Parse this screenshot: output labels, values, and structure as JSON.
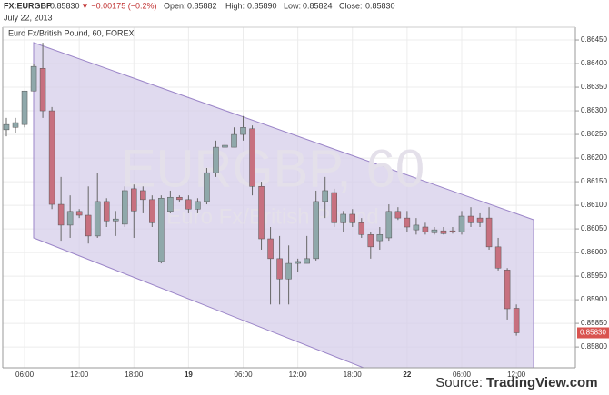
{
  "chart_data": {
    "type": "candlestick",
    "quote": {
      "symbol": "FX:EURGBP",
      "last": "0.85830",
      "change": "▼ −0.00175 (−0.2%)",
      "open_label": "Open:",
      "open": "0.85882",
      "high_label": "High:",
      "high": "0.85890",
      "low_label": "Low:",
      "low": "0.85824",
      "close_label": "Close:",
      "close": "0.85830",
      "date": "July 22, 2013"
    },
    "title": "Euro Fx/British Pound, 60, FOREX",
    "watermark": "EURGBP, 60",
    "watermark_subtitle": "Euro Fx/British Pound",
    "source_label": "Source:",
    "source": "TradingView.com",
    "up_color": "#8fa8aa",
    "down_color": "#c7707f",
    "channel_color": "#d6cdea",
    "grid": true,
    "categories": [
      null,
      null,
      "06:00",
      null,
      null,
      null,
      null,
      null,
      "12:00",
      null,
      null,
      null,
      null,
      null,
      "18:00",
      null,
      null,
      null,
      null,
      null,
      "19",
      null,
      null,
      null,
      null,
      null,
      "06:00",
      null,
      null,
      null,
      null,
      null,
      "12:00",
      null,
      null,
      null,
      null,
      null,
      "18:00",
      null,
      null,
      null,
      null,
      null,
      "22",
      null,
      null,
      null,
      null,
      null,
      "06:00",
      null,
      null,
      null,
      null,
      null,
      "12:00"
    ],
    "open": [
      0.8626,
      0.86265,
      0.86271,
      0.86342,
      0.8639,
      0.863,
      0.86102,
      0.86058,
      0.86087,
      0.86079,
      0.86035,
      0.86108,
      0.86067,
      0.8606,
      0.86135,
      0.86131,
      0.86112,
      0.85981,
      0.86087,
      0.86117,
      0.86112,
      0.86092,
      0.86108,
      0.86169,
      0.86223,
      0.86223,
      0.8625,
      0.86262,
      0.8614,
      0.86029,
      0.85987,
      0.85944,
      0.85977,
      0.85977,
      0.85987,
      0.86108,
      0.86127,
      0.86063,
      0.86081,
      0.86063,
      0.86038,
      0.86025,
      0.86031,
      0.86087,
      0.86073,
      0.86048,
      0.86054,
      0.86042,
      0.86046,
      0.86046,
      0.86044,
      0.86077,
      0.86073,
      0.86073,
      0.86012,
      0.85963,
      0.85882
    ],
    "high": [
      0.86285,
      0.86285,
      0.86342,
      0.864,
      0.86444,
      0.86308,
      0.8616,
      0.86121,
      0.86092,
      0.8614,
      0.86169,
      0.86115,
      0.86088,
      0.8614,
      0.86144,
      0.8614,
      0.86121,
      0.86121,
      0.86131,
      0.86121,
      0.86121,
      0.86115,
      0.86179,
      0.86237,
      0.86237,
      0.86265,
      0.86289,
      0.86269,
      0.8615,
      0.86054,
      0.86035,
      0.86015,
      0.85987,
      0.86035,
      0.86131,
      0.8616,
      0.86135,
      0.86088,
      0.86092,
      0.86073,
      0.86044,
      0.86054,
      0.86102,
      0.86096,
      0.86088,
      0.86073,
      0.86063,
      0.86054,
      0.86054,
      0.86054,
      0.86088,
      0.86096,
      0.86083,
      0.86096,
      0.86031,
      0.85967,
      0.8589
    ],
    "low": [
      0.86246,
      0.86254,
      0.86265,
      0.86342,
      0.86285,
      0.86092,
      0.86025,
      0.86031,
      0.86073,
      0.86019,
      0.86031,
      0.86054,
      0.86035,
      0.86054,
      0.86031,
      0.86083,
      0.86054,
      0.85977,
      0.86083,
      0.86108,
      0.86083,
      0.86083,
      0.86102,
      0.8616,
      0.86223,
      0.86223,
      0.86237,
      0.86121,
      0.86006,
      0.8589,
      0.8589,
      0.8589,
      0.85958,
      0.85977,
      0.85983,
      0.86073,
      0.86054,
      0.86044,
      0.86054,
      0.86031,
      0.85987,
      0.86006,
      0.86025,
      0.86069,
      0.86044,
      0.86038,
      0.86038,
      0.86038,
      0.86038,
      0.8604,
      0.86038,
      0.86054,
      0.86054,
      0.86006,
      0.85962,
      0.85858,
      0.85824
    ],
    "close": [
      0.86271,
      0.86275,
      0.86342,
      0.86394,
      0.863,
      0.86102,
      0.86058,
      0.86087,
      0.86079,
      0.86035,
      0.86108,
      0.86067,
      0.86071,
      0.86131,
      0.86088,
      0.86112,
      0.86063,
      0.86115,
      0.86117,
      0.86112,
      0.86092,
      0.86108,
      0.86169,
      0.86223,
      0.86227,
      0.8625,
      0.86265,
      0.8614,
      0.86029,
      0.85987,
      0.85944,
      0.85977,
      0.85981,
      0.85987,
      0.86108,
      0.86131,
      0.86063,
      0.86081,
      0.86063,
      0.86038,
      0.86012,
      0.86038,
      0.86087,
      0.86073,
      0.86054,
      0.86058,
      0.86044,
      0.86048,
      0.8604,
      0.86044,
      0.86077,
      0.86063,
      0.86063,
      0.86012,
      0.85967,
      0.85881,
      0.8583
    ],
    "ylim": [
      0.85756,
      0.86477
    ],
    "yticks": [
      {
        "value": 0.858,
        "label": "0.85800"
      },
      {
        "value": 0.8585,
        "label": "0.85850"
      },
      {
        "value": 0.859,
        "label": "0.85900"
      },
      {
        "value": 0.8595,
        "label": "0.85950"
      },
      {
        "value": 0.86,
        "label": "0.86000"
      },
      {
        "value": 0.8605,
        "label": "0.86050"
      },
      {
        "value": 0.861,
        "label": "0.86100"
      },
      {
        "value": 0.8615,
        "label": "0.86150"
      },
      {
        "value": 0.862,
        "label": "0.86200"
      },
      {
        "value": 0.8625,
        "label": "0.86250"
      },
      {
        "value": 0.863,
        "label": "0.86300"
      },
      {
        "value": 0.8635,
        "label": "0.86350"
      },
      {
        "value": 0.864,
        "label": "0.86400"
      },
      {
        "value": 0.8645,
        "label": "0.86450"
      }
    ]
  }
}
